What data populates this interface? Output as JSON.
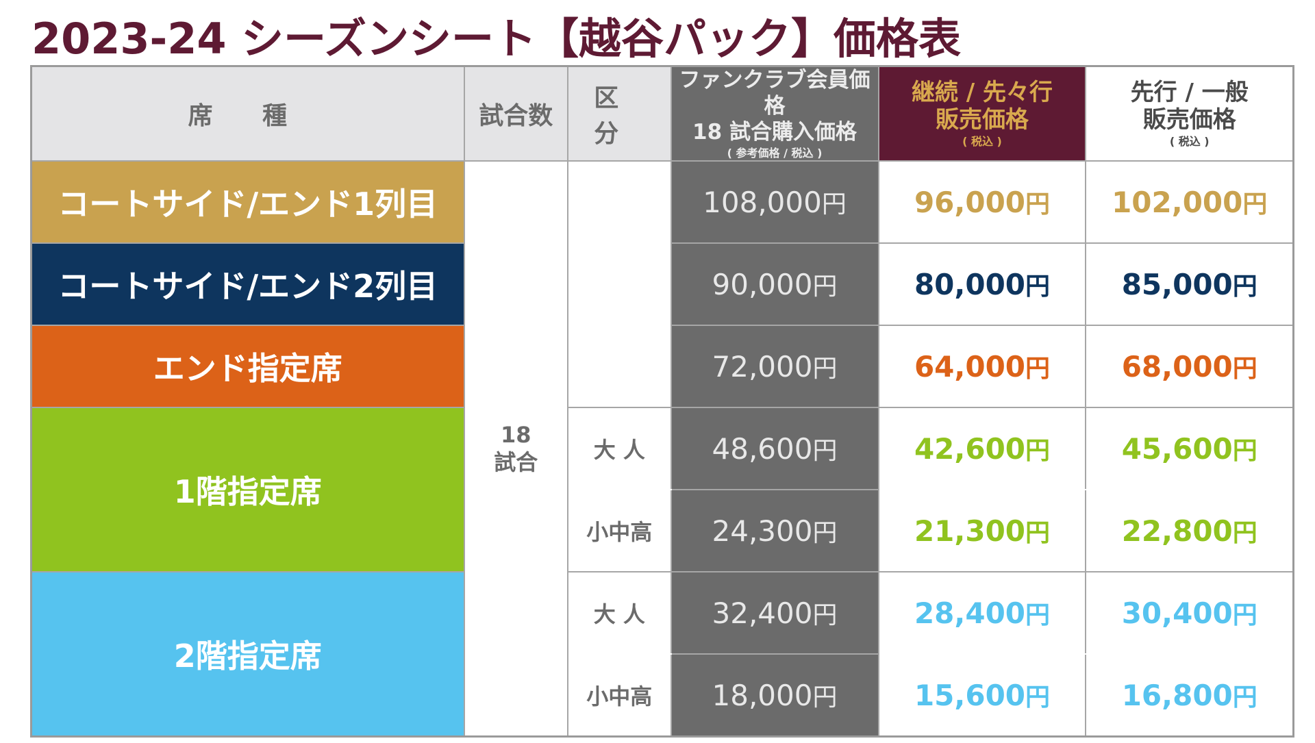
{
  "title": "2023-24 シーズンシート【越谷パック】価格表",
  "header": {
    "seat": "席 種",
    "games": "試合数",
    "division": "区 分",
    "fc_line1": "ファンクラブ会員価格",
    "fc_line2": "18 試合購入価格",
    "fc_note": "( 参考価格 / 税込 )",
    "cont_line1": "継続 / 先々行",
    "cont_line2": "販売価格",
    "cont_note": "( 税込 )",
    "gen_line1": "先行 / 一般",
    "gen_line2": "販売価格",
    "gen_note": "( 税込 )"
  },
  "games_line1": "18",
  "games_line2": "試合",
  "yen": "円",
  "colors": {
    "court1": "#c9a24f",
    "court2": "#0e355e",
    "end": "#dc6218",
    "floor1": "#90c31f",
    "floor2": "#56c3ef"
  },
  "seats": [
    {
      "name": "コートサイド/エンド1列目",
      "color": "#c9a24f",
      "text_color": "#c9a24f"
    },
    {
      "name": "コートサイド/エンド2列目",
      "color": "#0e355e",
      "text_color": "#0e355e"
    },
    {
      "name": "エンド指定席",
      "color": "#dc6218",
      "text_color": "#dc6218"
    },
    {
      "name": "1階指定席",
      "color": "#90c31f",
      "text_color": "#90c31f"
    },
    {
      "name": "2階指定席",
      "color": "#56c3ef",
      "text_color": "#56c3ef"
    }
  ],
  "rows": [
    {
      "division": "",
      "fc": "108,000",
      "cont": "96,000",
      "gen": "102,000"
    },
    {
      "division": "",
      "fc": "90,000",
      "cont": "80,000",
      "gen": "85,000"
    },
    {
      "division": "",
      "fc": "72,000",
      "cont": "64,000",
      "gen": "68,000"
    },
    {
      "division": "大 人",
      "fc": "48,600",
      "cont": "42,600",
      "gen": "45,600"
    },
    {
      "division": "小中高",
      "fc": "24,300",
      "cont": "21,300",
      "gen": "22,800"
    },
    {
      "division": "大 人",
      "fc": "32,400",
      "cont": "28,400",
      "gen": "30,400"
    },
    {
      "division": "小中高",
      "fc": "18,000",
      "cont": "15,600",
      "gen": "16,800"
    }
  ]
}
